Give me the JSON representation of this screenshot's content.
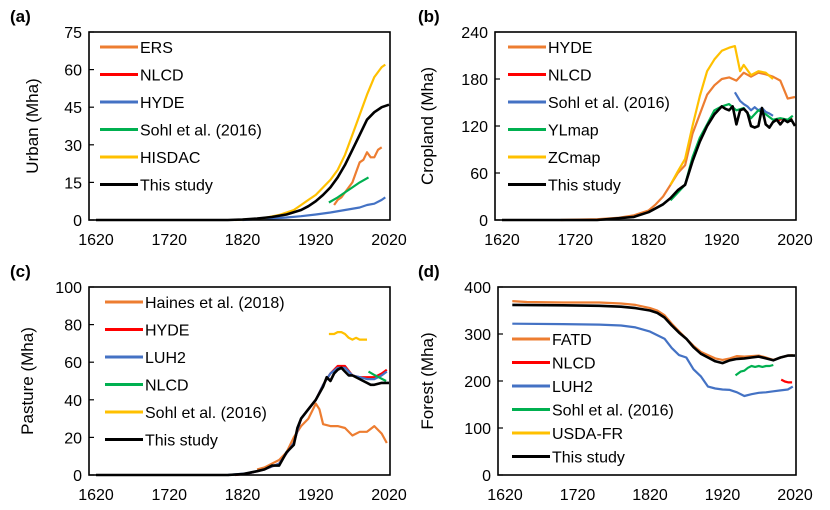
{
  "chart_data": [
    {
      "panel": "(a)",
      "type": "line",
      "ylabel": "Urban (Mha)",
      "xlabel": "",
      "xlim": [
        1620,
        2020
      ],
      "ylim": [
        0,
        75
      ],
      "xticks": [
        1620,
        1720,
        1820,
        1920,
        2020
      ],
      "yticks": [
        0,
        15,
        30,
        45,
        60,
        75
      ],
      "legend_position": "top-left",
      "series": [
        {
          "name": "ERS",
          "color": "#ED7D31",
          "x": [
            1945,
            1950,
            1955,
            1960,
            1965,
            1970,
            1975,
            1980,
            1985,
            1990,
            1995,
            2000,
            2005,
            2010
          ],
          "y": [
            6,
            8,
            9,
            11,
            13,
            15,
            19,
            23,
            24,
            27,
            25,
            25,
            28,
            29
          ]
        },
        {
          "name": "NLCD",
          "color": "#FF0000",
          "x": [],
          "y": []
        },
        {
          "name": "HYDE",
          "color": "#4472C4",
          "x": [
            1820,
            1840,
            1860,
            1880,
            1900,
            1920,
            1940,
            1960,
            1980,
            1990,
            2000,
            2010,
            2015
          ],
          "y": [
            0,
            0.3,
            0.6,
            1,
            1.5,
            2.2,
            3,
            4,
            5,
            6,
            6.5,
            8,
            9
          ]
        },
        {
          "name": "Sohl et al. (2016)",
          "color": "#00B050",
          "x": [
            1938,
            1950,
            1960,
            1970,
            1980,
            1992
          ],
          "y": [
            7,
            9,
            11,
            13,
            15,
            17
          ]
        },
        {
          "name": "HISDAC",
          "color": "#FFC000",
          "x": [
            1810,
            1830,
            1850,
            1870,
            1890,
            1900,
            1910,
            1920,
            1930,
            1940,
            1950,
            1960,
            1970,
            1980,
            1990,
            2000,
            2010,
            2015
          ],
          "y": [
            0,
            0.3,
            0.8,
            2,
            4,
            6,
            8,
            10,
            13,
            16,
            20,
            26,
            34,
            42,
            50,
            57,
            61,
            62
          ]
        },
        {
          "name": "This study",
          "color": "#000000",
          "x": [
            1620,
            1800,
            1820,
            1840,
            1860,
            1880,
            1900,
            1910,
            1920,
            1930,
            1940,
            1950,
            1960,
            1970,
            1980,
            1990,
            2000,
            2010,
            2020
          ],
          "y": [
            0,
            0,
            0.2,
            0.6,
            1.2,
            2.2,
            4,
            5.5,
            7.5,
            10,
            13,
            17,
            22,
            28,
            34,
            40,
            43,
            45,
            46
          ]
        }
      ]
    },
    {
      "panel": "(b)",
      "type": "line",
      "ylabel": "Cropland (Mha)",
      "xlabel": "",
      "xlim": [
        1620,
        2020
      ],
      "ylim": [
        0,
        240
      ],
      "xticks": [
        1620,
        1720,
        1820,
        1920,
        2020
      ],
      "yticks": [
        0,
        60,
        120,
        180,
        240
      ],
      "legend_position": "top-left",
      "series": [
        {
          "name": "HYDE",
          "color": "#ED7D31",
          "x": [
            1700,
            1750,
            1780,
            1800,
            1820,
            1830,
            1840,
            1850,
            1860,
            1870,
            1880,
            1890,
            1900,
            1910,
            1920,
            1930,
            1940,
            1950,
            1960,
            1970,
            1980,
            1990,
            2000,
            2010,
            2020
          ],
          "y": [
            0,
            1,
            3,
            6,
            12,
            20,
            30,
            45,
            60,
            70,
            110,
            135,
            160,
            172,
            180,
            182,
            178,
            188,
            183,
            188,
            186,
            183,
            178,
            155,
            157
          ]
        },
        {
          "name": "NLCD",
          "color": "#FF0000",
          "x": [
            1995,
            2001,
            2006,
            2011,
            2016
          ],
          "y": [
            126,
            129,
            128,
            127,
            130
          ]
        },
        {
          "name": "Sohl et al. (2016)",
          "color": "#4472C4",
          "x": [
            1938,
            1945,
            1950,
            1955,
            1960,
            1965,
            1970,
            1975,
            1980,
            1985,
            1990
          ],
          "y": [
            163,
            152,
            148,
            145,
            140,
            144,
            140,
            143,
            138,
            136,
            133
          ]
        },
        {
          "name": "YLmap",
          "color": "#00B050",
          "x": [
            1850,
            1860,
            1870,
            1880,
            1890,
            1900,
            1910,
            1920,
            1930,
            1940,
            1950,
            1960,
            1970,
            1980,
            1990,
            2000,
            2010,
            2017
          ],
          "y": [
            25,
            35,
            45,
            80,
            105,
            122,
            140,
            145,
            148,
            140,
            143,
            130,
            140,
            135,
            128,
            130,
            128,
            133
          ]
        },
        {
          "name": "ZCmap",
          "color": "#FFC000",
          "x": [
            1850,
            1860,
            1870,
            1880,
            1890,
            1900,
            1910,
            1920,
            1930,
            1938,
            1945,
            1950,
            1960,
            1970,
            1980,
            1990
          ],
          "y": [
            45,
            62,
            78,
            120,
            158,
            190,
            205,
            216,
            220,
            222,
            190,
            198,
            185,
            190,
            188,
            180
          ]
        },
        {
          "name": "This study",
          "color": "#000000",
          "x": [
            1620,
            1750,
            1800,
            1820,
            1840,
            1850,
            1860,
            1870,
            1880,
            1890,
            1900,
            1910,
            1920,
            1925,
            1930,
            1935,
            1940,
            1945,
            1950,
            1955,
            1960,
            1965,
            1970,
            1975,
            1980,
            1985,
            1990,
            1995,
            2000,
            2005,
            2010,
            2015,
            2020
          ],
          "y": [
            0,
            0,
            4,
            10,
            20,
            28,
            38,
            45,
            75,
            100,
            120,
            135,
            145,
            142,
            140,
            145,
            122,
            140,
            142,
            137,
            120,
            118,
            120,
            143,
            122,
            118,
            125,
            128,
            122,
            128,
            125,
            128,
            120
          ]
        }
      ]
    },
    {
      "panel": "(c)",
      "type": "line",
      "ylabel": "Pasture (Mha)",
      "xlabel": "",
      "xlim": [
        1620,
        2020
      ],
      "ylim": [
        0,
        100
      ],
      "xticks": [
        1620,
        1720,
        1820,
        1920,
        2020
      ],
      "yticks": [
        0,
        20,
        40,
        60,
        80,
        100
      ],
      "legend_position": "top-left",
      "series": [
        {
          "name": "Haines et al. (2018)",
          "color": "#ED7D31",
          "x": [
            1840,
            1850,
            1860,
            1870,
            1880,
            1890,
            1900,
            1910,
            1920,
            1925,
            1930,
            1940,
            1950,
            1960,
            1970,
            1980,
            1990,
            2000,
            2010,
            2017
          ],
          "y": [
            3,
            4,
            6,
            8,
            12,
            20,
            26,
            30,
            38,
            35,
            27,
            26,
            26,
            25,
            21,
            23,
            23,
            26,
            22,
            17
          ]
        },
        {
          "name": "HYDE",
          "color": "#FF0000",
          "x": [
            1810,
            1830,
            1850,
            1870,
            1890,
            1900,
            1910,
            1920,
            1930,
            1940,
            1950,
            1960,
            1970,
            1980,
            1990,
            2000,
            2010,
            2017
          ],
          "y": [
            0,
            1,
            3,
            6,
            17,
            30,
            35,
            40,
            48,
            54,
            58,
            58,
            53,
            52,
            52,
            52,
            54,
            56
          ]
        },
        {
          "name": "LUH2",
          "color": "#4472C4",
          "x": [
            1800,
            1830,
            1850,
            1870,
            1890,
            1900,
            1910,
            1920,
            1930,
            1940,
            1950,
            1960,
            1970,
            1980,
            1990,
            2000,
            2010,
            2017
          ],
          "y": [
            0,
            1,
            3,
            6,
            17,
            30,
            35,
            40,
            48,
            54,
            57,
            57,
            53,
            52,
            51,
            51,
            53,
            55
          ]
        },
        {
          "name": "NLCD",
          "color": "#00B050",
          "x": [
            1992,
            2001,
            2006,
            2011,
            2016
          ],
          "y": [
            55,
            53,
            52,
            51,
            50
          ]
        },
        {
          "name": "Sohl et al. (2016)",
          "color": "#FFC000",
          "x": [
            1938,
            1945,
            1950,
            1955,
            1960,
            1965,
            1970,
            1975,
            1980,
            1985,
            1990
          ],
          "y": [
            75,
            75,
            76,
            76,
            75,
            73,
            72,
            73,
            72,
            72,
            72
          ]
        },
        {
          "name": "This study",
          "color": "#000000",
          "x": [
            1620,
            1800,
            1820,
            1840,
            1850,
            1860,
            1870,
            1880,
            1890,
            1895,
            1900,
            1910,
            1920,
            1930,
            1935,
            1940,
            1945,
            1950,
            1955,
            1960,
            1965,
            1970,
            1980,
            1990,
            1995,
            2000,
            2010,
            2020
          ],
          "y": [
            0,
            0,
            0.5,
            2,
            3,
            5,
            5,
            12,
            16,
            25,
            30,
            35,
            40,
            47,
            52,
            50,
            54,
            56,
            57,
            55,
            53,
            53,
            51,
            49,
            48,
            48,
            49,
            49
          ]
        }
      ]
    },
    {
      "panel": "(d)",
      "type": "line",
      "ylabel": "Forest (Mha)",
      "xlabel": "",
      "xlim": [
        1620,
        2020
      ],
      "ylim": [
        0,
        400
      ],
      "xticks": [
        1620,
        1720,
        1820,
        1920,
        2020
      ],
      "yticks": [
        0,
        100,
        200,
        300,
        400
      ],
      "legend_position": "left",
      "series": [
        {
          "name": "FATD",
          "color": "#ED7D31",
          "x": [
            1630,
            1650,
            1700,
            1750,
            1780,
            1800,
            1820,
            1830,
            1840,
            1850,
            1860,
            1870,
            1880,
            1890,
            1900,
            1910,
            1920,
            1930,
            1940,
            1950,
            1960,
            1970,
            1980,
            1990,
            2000,
            2010,
            2017
          ],
          "y": [
            370,
            368,
            367,
            367,
            365,
            362,
            355,
            350,
            340,
            322,
            306,
            290,
            275,
            262,
            255,
            248,
            245,
            248,
            253,
            252,
            253,
            254,
            250,
            245,
            250,
            254,
            255
          ]
        },
        {
          "name": "NLCD",
          "color": "#FF0000",
          "x": [
            2001,
            2006,
            2011,
            2016
          ],
          "y": [
            203,
            199,
            197,
            197
          ]
        },
        {
          "name": "LUH2",
          "color": "#4472C4",
          "x": [
            1630,
            1700,
            1750,
            1780,
            1800,
            1820,
            1840,
            1850,
            1860,
            1870,
            1880,
            1890,
            1900,
            1910,
            1920,
            1930,
            1940,
            1950,
            1960,
            1970,
            1980,
            1990,
            2000,
            2010,
            2017
          ],
          "y": [
            322,
            321,
            320,
            318,
            314,
            305,
            290,
            270,
            255,
            250,
            225,
            210,
            188,
            184,
            182,
            181,
            176,
            168,
            172,
            175,
            176,
            178,
            180,
            182,
            188
          ]
        },
        {
          "name": "Sohl et al. (2016)",
          "color": "#00B050",
          "x": [
            1938,
            1945,
            1950,
            1955,
            1960,
            1965,
            1970,
            1975,
            1980,
            1985,
            1990
          ],
          "y": [
            212,
            220,
            222,
            228,
            232,
            230,
            232,
            230,
            232,
            232,
            234
          ]
        },
        {
          "name": "USDA-FR",
          "color": "#FFC000",
          "x": [],
          "y": []
        },
        {
          "name": "This study",
          "color": "#000000",
          "x": [
            1630,
            1700,
            1750,
            1780,
            1800,
            1820,
            1830,
            1840,
            1850,
            1860,
            1870,
            1880,
            1890,
            1900,
            1910,
            1920,
            1930,
            1940,
            1950,
            1960,
            1970,
            1980,
            1990,
            2000,
            2010,
            2020
          ],
          "y": [
            362,
            361,
            360,
            358,
            355,
            350,
            345,
            335,
            318,
            303,
            290,
            272,
            258,
            250,
            242,
            238,
            244,
            247,
            248,
            250,
            252,
            248,
            244,
            250,
            254,
            254
          ]
        }
      ]
    }
  ]
}
